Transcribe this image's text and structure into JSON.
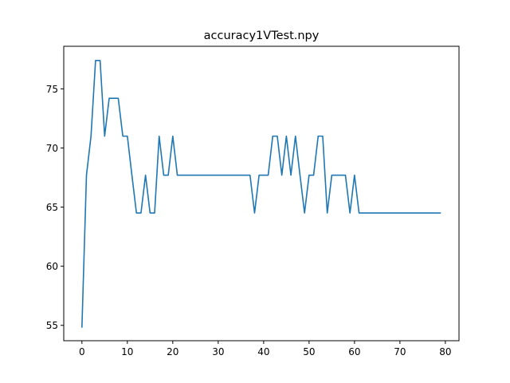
{
  "chart_data": {
    "type": "line",
    "title": "accuracy1VTest.npy",
    "xlabel": "",
    "ylabel": "",
    "xlim": [
      -4,
      83
    ],
    "ylim": [
      53.7,
      78.6
    ],
    "xticks": [
      0,
      10,
      20,
      30,
      40,
      50,
      60,
      70,
      80
    ],
    "yticks": [
      55,
      60,
      65,
      70,
      75
    ],
    "grid": false,
    "line_color": "#1f77b4",
    "series": [
      {
        "x": [
          0,
          1,
          2,
          3,
          4,
          5,
          6,
          7,
          8,
          9,
          10,
          11,
          12,
          13,
          14,
          15,
          16,
          17,
          18,
          19,
          20,
          21,
          22,
          23,
          24,
          25,
          26,
          27,
          28,
          29,
          30,
          31,
          32,
          33,
          34,
          35,
          36,
          37,
          38,
          39,
          40,
          41,
          42,
          43,
          44,
          45,
          46,
          47,
          48,
          49,
          50,
          51,
          52,
          53,
          54,
          55,
          56,
          57,
          58,
          59,
          60,
          61,
          62,
          63,
          64,
          65,
          66,
          67,
          68,
          69,
          70,
          71,
          72,
          73,
          74,
          75,
          76,
          77,
          78,
          79
        ],
        "values": [
          54.8,
          67.7,
          71.0,
          77.4,
          77.4,
          71.0,
          74.2,
          74.2,
          74.2,
          71.0,
          71.0,
          67.7,
          64.5,
          64.5,
          67.7,
          64.5,
          64.5,
          71.0,
          67.7,
          67.7,
          71.0,
          67.7,
          67.7,
          67.7,
          67.7,
          67.7,
          67.7,
          67.7,
          67.7,
          67.7,
          67.7,
          67.7,
          67.7,
          67.7,
          67.7,
          67.7,
          67.7,
          67.7,
          64.5,
          67.7,
          67.7,
          67.7,
          71.0,
          71.0,
          67.7,
          71.0,
          67.7,
          71.0,
          67.7,
          64.5,
          67.7,
          67.7,
          71.0,
          71.0,
          64.5,
          67.7,
          67.7,
          67.7,
          67.7,
          64.5,
          67.7,
          64.5,
          64.5,
          64.5,
          64.5,
          64.5,
          64.5,
          64.5,
          64.5,
          64.5,
          64.5,
          64.5,
          64.5,
          64.5,
          64.5,
          64.5,
          64.5,
          64.5,
          64.5,
          64.5
        ]
      }
    ]
  }
}
